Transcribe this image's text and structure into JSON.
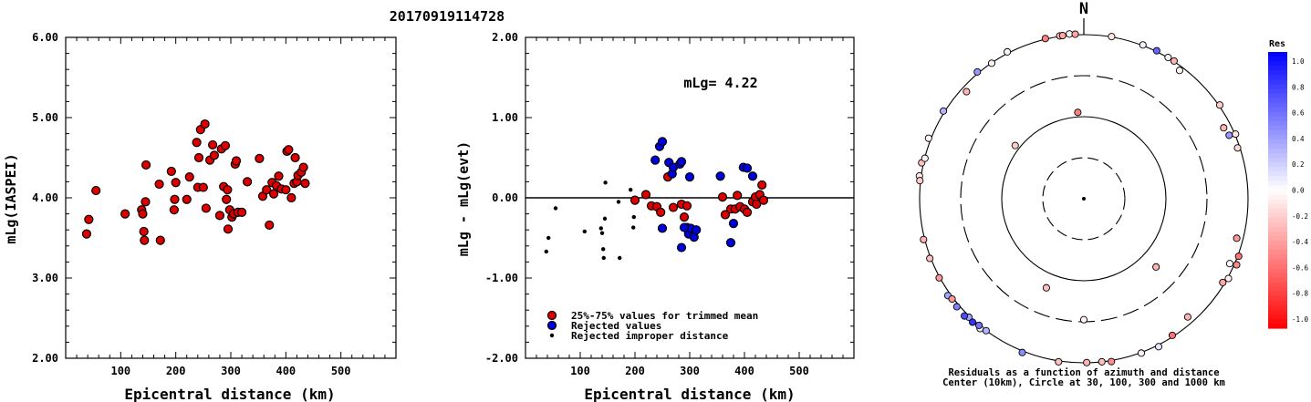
{
  "title": "20170919114728",
  "chart_data": [
    {
      "type": "scatter",
      "xlabel": "Epicentral distance (km)",
      "ylabel": "mLg(IASPEI)",
      "xlim": [
        0,
        600
      ],
      "ylim": [
        2.0,
        6.0
      ],
      "xticks": [
        {
          "v": 100,
          "label": "100"
        },
        {
          "v": 200,
          "label": "200"
        },
        {
          "v": 300,
          "label": "300"
        },
        {
          "v": 400,
          "label": "400"
        },
        {
          "v": 500,
          "label": "500"
        }
      ],
      "yticks": [
        {
          "v": 2.0,
          "label": "2.00"
        },
        {
          "v": 3.0,
          "label": "3.00"
        },
        {
          "v": 4.0,
          "label": "4.00"
        },
        {
          "v": 5.0,
          "label": "5.00"
        },
        {
          "v": 6.0,
          "label": "6.00"
        }
      ],
      "series": [
        {
          "color": "#dd0000",
          "points": [
            [
              38,
              3.55
            ],
            [
              42,
              3.73
            ],
            [
              55,
              4.09
            ],
            [
              108,
              3.8
            ],
            [
              138,
              3.85
            ],
            [
              140,
              3.8
            ],
            [
              142,
              3.58
            ],
            [
              143,
              3.47
            ],
            [
              145,
              3.95
            ],
            [
              146,
              4.41
            ],
            [
              170,
              4.17
            ],
            [
              172,
              3.47
            ],
            [
              192,
              4.33
            ],
            [
              197,
              3.85
            ],
            [
              198,
              3.98
            ],
            [
              200,
              4.19
            ],
            [
              220,
              3.98
            ],
            [
              225,
              4.26
            ],
            [
              238,
              4.69
            ],
            [
              242,
              4.5
            ],
            [
              240,
              4.13
            ],
            [
              245,
              4.85
            ],
            [
              250,
              4.13
            ],
            [
              253,
              4.92
            ],
            [
              255,
              3.87
            ],
            [
              262,
              4.47
            ],
            [
              267,
              4.66
            ],
            [
              270,
              4.53
            ],
            [
              280,
              3.78
            ],
            [
              283,
              4.61
            ],
            [
              287,
              4.14
            ],
            [
              290,
              4.65
            ],
            [
              292,
              3.98
            ],
            [
              294,
              4.1
            ],
            [
              295,
              3.61
            ],
            [
              298,
              3.85
            ],
            [
              302,
              3.76
            ],
            [
              305,
              3.8
            ],
            [
              308,
              4.42
            ],
            [
              310,
              4.46
            ],
            [
              313,
              3.82
            ],
            [
              320,
              3.82
            ],
            [
              330,
              4.2
            ],
            [
              352,
              4.49
            ],
            [
              358,
              4.02
            ],
            [
              365,
              4.1
            ],
            [
              370,
              3.66
            ],
            [
              375,
              4.19
            ],
            [
              378,
              4.05
            ],
            [
              383,
              4.15
            ],
            [
              387,
              4.27
            ],
            [
              392,
              4.11
            ],
            [
              400,
              4.1
            ],
            [
              402,
              4.58
            ],
            [
              405,
              4.6
            ],
            [
              410,
              4.0
            ],
            [
              415,
              4.18
            ],
            [
              417,
              4.5
            ],
            [
              420,
              4.2
            ],
            [
              422,
              4.28
            ],
            [
              428,
              4.32
            ],
            [
              432,
              4.38
            ],
            [
              435,
              4.18
            ]
          ]
        }
      ]
    },
    {
      "type": "scatter",
      "xlabel": "Epicentral distance (km)",
      "ylabel": "mLg - mLg(evt)",
      "annotation": "mLg= 4.22",
      "xlim": [
        0,
        600
      ],
      "ylim": [
        -2.0,
        2.0
      ],
      "xticks": [
        {
          "v": 100,
          "label": "100"
        },
        {
          "v": 200,
          "label": "200"
        },
        {
          "v": 300,
          "label": "300"
        },
        {
          "v": 400,
          "label": "400"
        },
        {
          "v": 500,
          "label": "500"
        }
      ],
      "yticks": [
        {
          "v": -2.0,
          "label": "-2.00"
        },
        {
          "v": -1.0,
          "label": "-1.00"
        },
        {
          "v": 0.0,
          "label": "0.00"
        },
        {
          "v": 1.0,
          "label": "1.00"
        },
        {
          "v": 2.0,
          "label": "2.00"
        }
      ],
      "zero_line": 0.0,
      "series": [
        {
          "name": "25%-75% values for trimmed mean",
          "color": "#dd0000",
          "points": [
            [
              200,
              -0.03
            ],
            [
              220,
              0.04
            ],
            [
              230,
              -0.1
            ],
            [
              240,
              -0.11
            ],
            [
              247,
              -0.18
            ],
            [
              270,
              -0.12
            ],
            [
              285,
              -0.08
            ],
            [
              290,
              -0.24
            ],
            [
              295,
              -0.1
            ],
            [
              365,
              -0.21
            ],
            [
              375,
              -0.14
            ],
            [
              383,
              -0.14
            ],
            [
              387,
              0.03
            ],
            [
              392,
              -0.11
            ],
            [
              400,
              -0.14
            ],
            [
              405,
              -0.18
            ],
            [
              415,
              -0.05
            ],
            [
              420,
              0.01
            ],
            [
              422,
              -0.08
            ],
            [
              428,
              0.04
            ],
            [
              432,
              0.16
            ],
            [
              435,
              -0.03
            ],
            [
              260,
              0.26
            ],
            [
              360,
              0.01
            ]
          ]
        },
        {
          "name": "Rejected values",
          "color": "#0000dd",
          "points": [
            [
              237,
              0.47
            ],
            [
              245,
              0.64
            ],
            [
              250,
              0.7
            ],
            [
              262,
              0.44
            ],
            [
              268,
              0.3
            ],
            [
              270,
              0.38
            ],
            [
              282,
              0.42
            ],
            [
              285,
              0.45
            ],
            [
              300,
              0.26
            ],
            [
              356,
              0.27
            ],
            [
              398,
              0.38
            ],
            [
              405,
              0.37
            ],
            [
              415,
              0.27
            ],
            [
              250,
              -0.38
            ],
            [
              285,
              -0.62
            ],
            [
              295,
              -0.37
            ],
            [
              298,
              -0.45
            ],
            [
              302,
              -0.38
            ],
            [
              308,
              -0.49
            ],
            [
              312,
              -0.4
            ],
            [
              380,
              -0.32
            ],
            [
              375,
              -0.56
            ],
            [
              290,
              -0.37
            ]
          ]
        },
        {
          "name": "Rejected improper distance",
          "color": "#000000",
          "small": true,
          "points": [
            [
              38,
              -0.67
            ],
            [
              42,
              -0.5
            ],
            [
              55,
              -0.13
            ],
            [
              108,
              -0.42
            ],
            [
              138,
              -0.38
            ],
            [
              140,
              -0.44
            ],
            [
              142,
              -0.64
            ],
            [
              143,
              -0.75
            ],
            [
              145,
              -0.26
            ],
            [
              146,
              0.19
            ],
            [
              170,
              -0.05
            ],
            [
              172,
              -0.75
            ],
            [
              192,
              0.1
            ],
            [
              197,
              -0.37
            ],
            [
              198,
              -0.24
            ]
          ]
        }
      ]
    },
    {
      "type": "polar-scatter",
      "north_label": "N",
      "caption_line1": "Residuals as a function of azimuth and distance",
      "caption_line2": "Center (10km), Circle at 30, 100, 300 and 1000 km",
      "colorbar_title": "Res",
      "colorbar_labels": [
        "1.0",
        "0.8",
        "0.6",
        "0.4",
        "0.2",
        "0.0",
        "-0.2",
        "-0.4",
        "-0.6",
        "-0.8",
        "-1.0"
      ],
      "colorbar_range": [
        1.0,
        -1.0
      ],
      "points": [
        {
          "az": 30.8,
          "dist": 1009.9,
          "res": 0.05
        },
        {
          "az": 26.2,
          "dist": 1024.4,
          "res": 0.6
        },
        {
          "az": 355.0,
          "dist": 1036.5,
          "res": -0.02
        },
        {
          "az": 351.6,
          "dist": 1014.6,
          "res": -0.25
        },
        {
          "az": 352.6,
          "dist": 1012.2,
          "res": -0.35
        },
        {
          "az": 9.7,
          "dist": 1011.8,
          "res": -0.1
        },
        {
          "az": 36.7,
          "dist": 893.4,
          "res": -0.05
        },
        {
          "az": 55.4,
          "dist": 1026.3,
          "res": -0.2
        },
        {
          "az": 63.1,
          "dist": 812.9,
          "res": -0.3
        },
        {
          "az": 66.4,
          "dist": 853.8,
          "res": 0.4
        },
        {
          "az": 66.9,
          "dist": 1019.8,
          "res": -0.1
        },
        {
          "az": 118.9,
          "dist": 1027.2,
          "res": -0.05
        },
        {
          "az": 104.5,
          "dist": 838.2,
          "res": -0.4
        },
        {
          "az": 114.0,
          "dist": 880.5,
          "res": 0.0
        },
        {
          "az": 153.2,
          "dist": 1048.2,
          "res": 0.1
        },
        {
          "az": 159.6,
          "dist": 1017.9,
          "res": -0.05
        },
        {
          "az": 147.1,
          "dist": 962.6,
          "res": -0.55
        },
        {
          "az": 138.7,
          "dist": 828.3,
          "res": -0.3
        },
        {
          "az": 170.4,
          "dist": 1030.8,
          "res": -0.45
        },
        {
          "az": 179.0,
          "dist": 994.6,
          "res": -0.3
        },
        {
          "az": 173.7,
          "dist": 999.7,
          "res": -0.25
        },
        {
          "az": 188.8,
          "dist": 1027.3,
          "res": -0.25
        },
        {
          "az": 201.8,
          "dist": 1045.2,
          "res": 0.45
        },
        {
          "az": 218.6,
          "dist": 1059.7,
          "res": 0.1
        },
        {
          "az": 219.6,
          "dist": 1007.5,
          "res": 0.55
        },
        {
          "az": 216.5,
          "dist": 1001.7,
          "res": 0.3
        },
        {
          "az": 224.1,
          "dist": 1025.9,
          "res": 0.35
        },
        {
          "az": 222.0,
          "dist": 1059.8,
          "res": 0.8
        },
        {
          "az": 225.5,
          "dist": 1095.3,
          "res": 0.7
        },
        {
          "az": 229.6,
          "dist": 1073.7,
          "res": 0.5
        },
        {
          "az": 234.5,
          "dist": 1080.5,
          "res": 0.35
        },
        {
          "az": 232.7,
          "dist": 1041.2,
          "res": -0.4
        },
        {
          "az": 241.3,
          "dist": 1019.7,
          "res": -0.4
        },
        {
          "az": 248.8,
          "dist": 1027.8,
          "res": -0.25
        },
        {
          "az": 255.7,
          "dist": 1033.9,
          "res": -0.3
        },
        {
          "az": 277.9,
          "dist": 1050.1,
          "res": -0.1
        },
        {
          "az": 276.3,
          "dist": 1021.2,
          "res": -0.2
        },
        {
          "az": 282.5,
          "dist": 1054.0,
          "res": -0.25
        },
        {
          "az": 284.3,
          "dist": 993.5,
          "res": -0.05
        },
        {
          "az": 291.3,
          "dist": 1070.7,
          "res": -0.05
        },
        {
          "az": 302.0,
          "dist": 1039.2,
          "res": 0.3
        },
        {
          "az": 320.0,
          "dist": 1041.7,
          "res": 0.4
        },
        {
          "az": 332.5,
          "dist": 1043.5,
          "res": 0.05
        },
        {
          "az": 312.4,
          "dist": 861.2,
          "res": -0.3
        },
        {
          "az": 325.8,
          "dist": 992.5,
          "res": -0.05
        },
        {
          "az": 71.7,
          "dist": 938.0,
          "res": -0.15
        },
        {
          "az": 121.1,
          "dist": 946.6,
          "res": -0.35
        },
        {
          "az": 346.5,
          "dist": 1018.7,
          "res": -0.5
        },
        {
          "az": 357.0,
          "dist": 1018.3,
          "res": -0.35
        },
        {
          "az": 21.0,
          "dist": 1018.4,
          "res": 0.05
        },
        {
          "az": 33.2,
          "dist": 1015.4,
          "res": -0.3
        },
        {
          "az": 356.0,
          "dist": 113.5,
          "res": -0.5
        },
        {
          "az": 307.8,
          "dist": 114.3,
          "res": -0.2
        },
        {
          "az": 133.4,
          "dist": 162.4,
          "res": -0.3
        },
        {
          "az": 180.0,
          "dist": 298.2,
          "res": -0.05
        },
        {
          "az": 202.8,
          "dist": 150.6,
          "res": -0.25
        },
        {
          "az": 113.4,
          "dist": 1065.6,
          "res": -0.45
        },
        {
          "az": 110.4,
          "dist": 1028.2,
          "res": -0.55
        }
      ]
    }
  ]
}
